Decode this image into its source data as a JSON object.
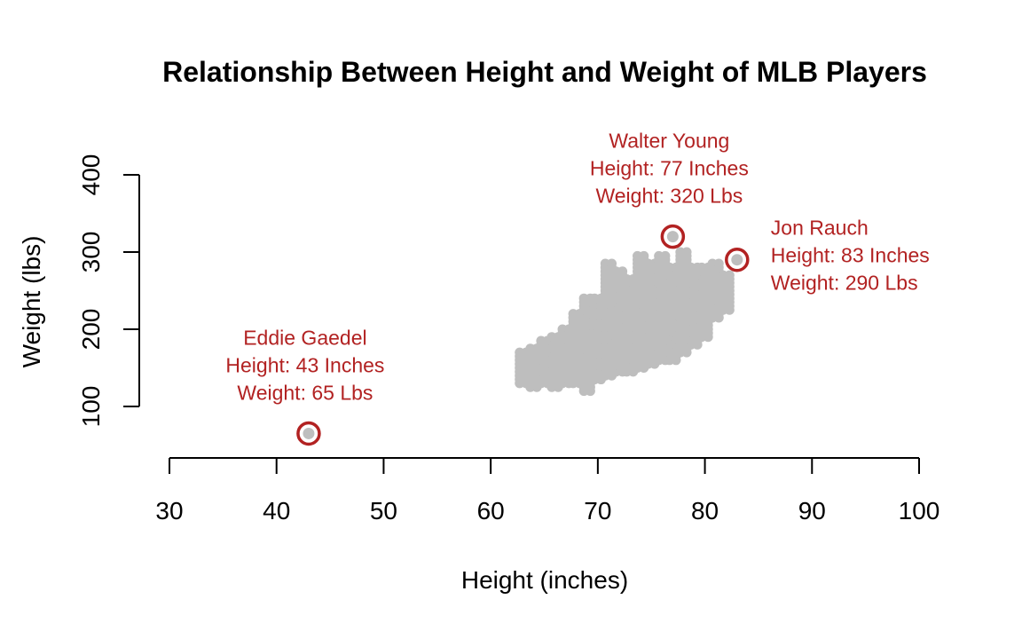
{
  "chart_data": {
    "type": "scatter",
    "title": "Relationship Between Height and Weight of MLB Players",
    "xlabel": "Height (inches)",
    "ylabel": "Weight (lbs)",
    "xlim": [
      30,
      100
    ],
    "ylim": [
      40,
      400
    ],
    "xticks": [
      30,
      40,
      50,
      60,
      70,
      80,
      90,
      100
    ],
    "yticks": [
      100,
      200,
      300,
      400
    ],
    "grid": false,
    "colors": {
      "points": "#bebebe",
      "highlight": "#b22222",
      "text": "#000000"
    },
    "highlights": [
      {
        "name": "Eddie Gaedel",
        "x": 43,
        "y": 65,
        "lines": [
          "Eddie Gaedel",
          "Height: 43 Inches",
          "Weight: 65 Lbs"
        ],
        "label_pos": "above"
      },
      {
        "name": "Walter Young",
        "x": 77,
        "y": 320,
        "lines": [
          "Walter Young",
          "Height: 77 Inches",
          "Weight: 320 Lbs"
        ],
        "label_pos": "above"
      },
      {
        "name": "Jon Rauch",
        "x": 83,
        "y": 290,
        "lines": [
          "Jon Rauch",
          "Height: 83 Inches",
          "Weight: 290 Lbs"
        ],
        "label_pos": "right"
      }
    ],
    "point_ranges": [
      {
        "x": 63,
        "y_min": 130,
        "y_max": 170
      },
      {
        "x": 64,
        "y_min": 125,
        "y_max": 175
      },
      {
        "x": 65,
        "y_min": 130,
        "y_max": 185
      },
      {
        "x": 66,
        "y_min": 125,
        "y_max": 190
      },
      {
        "x": 67,
        "y_min": 130,
        "y_max": 200
      },
      {
        "x": 68,
        "y_min": 130,
        "y_max": 220
      },
      {
        "x": 69,
        "y_min": 120,
        "y_max": 240
      },
      {
        "x": 70,
        "y_min": 135,
        "y_max": 240
      },
      {
        "x": 71,
        "y_min": 140,
        "y_max": 285
      },
      {
        "x": 72,
        "y_min": 145,
        "y_max": 275
      },
      {
        "x": 73,
        "y_min": 145,
        "y_max": 265
      },
      {
        "x": 74,
        "y_min": 150,
        "y_max": 295
      },
      {
        "x": 75,
        "y_min": 155,
        "y_max": 285
      },
      {
        "x": 76,
        "y_min": 160,
        "y_max": 295
      },
      {
        "x": 77,
        "y_min": 160,
        "y_max": 280
      },
      {
        "x": 78,
        "y_min": 170,
        "y_max": 300
      },
      {
        "x": 79,
        "y_min": 180,
        "y_max": 280
      },
      {
        "x": 80,
        "y_min": 190,
        "y_max": 280
      },
      {
        "x": 81,
        "y_min": 215,
        "y_max": 285
      },
      {
        "x": 82,
        "y_min": 225,
        "y_max": 270
      }
    ]
  }
}
